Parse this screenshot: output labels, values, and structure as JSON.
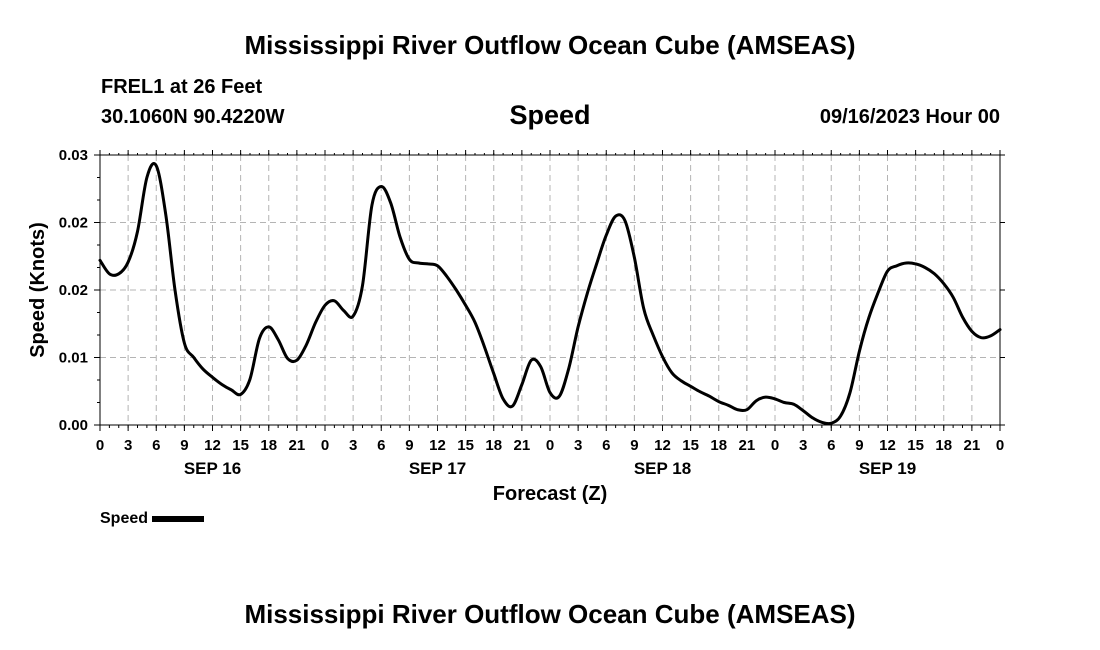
{
  "header": {
    "title": "Mississippi River Outflow Ocean Cube (AMSEAS)",
    "station": "FREL1 at 26 Feet",
    "coords": "30.1060N  90.4220W",
    "chart_name": "Speed",
    "datetime": "09/16/2023 Hour 00"
  },
  "footer": {
    "title": "Mississippi River Outflow Ocean Cube (AMSEAS)"
  },
  "chart_data": {
    "type": "line",
    "title": "Speed",
    "xlabel": "Forecast (Z)",
    "ylabel": "Speed (Knots)",
    "ylim": [
      0,
      0.03
    ],
    "xlim": [
      0,
      96
    ],
    "y_ticks": [
      "0.00",
      "0.01",
      "0.02",
      "0.02",
      "0.03"
    ],
    "x_tick_labels": [
      "0",
      "3",
      "6",
      "9",
      "12",
      "15",
      "18",
      "21",
      "0",
      "3",
      "6",
      "9",
      "12",
      "15",
      "18",
      "21",
      "0",
      "3",
      "6",
      "9",
      "12",
      "15",
      "18",
      "21",
      "0",
      "3",
      "6",
      "9",
      "12",
      "15",
      "18",
      "21",
      "0"
    ],
    "day_labels": [
      {
        "label": "SEP 16",
        "x": 12
      },
      {
        "label": "SEP 17",
        "x": 36
      },
      {
        "label": "SEP 18",
        "x": 60
      },
      {
        "label": "SEP 19",
        "x": 84
      }
    ],
    "grid": true,
    "legend_position": "bottom-left",
    "series": [
      {
        "name": "Speed",
        "color": "#000000",
        "points": [
          [
            0,
            0.0183
          ],
          [
            1,
            0.0168
          ],
          [
            2,
            0.0168
          ],
          [
            3,
            0.0181
          ],
          [
            4,
            0.0215
          ],
          [
            5,
            0.0275
          ],
          [
            6,
            0.0288
          ],
          [
            7,
            0.0235
          ],
          [
            8,
            0.015
          ],
          [
            9,
            0.0091
          ],
          [
            10,
            0.0075
          ],
          [
            11,
            0.0062
          ],
          [
            12,
            0.0053
          ],
          [
            13,
            0.0045
          ],
          [
            14,
            0.0039
          ],
          [
            15,
            0.0034
          ],
          [
            16,
            0.0051
          ],
          [
            17,
            0.0096
          ],
          [
            18,
            0.0109
          ],
          [
            19,
            0.0095
          ],
          [
            20,
            0.0074
          ],
          [
            21,
            0.0072
          ],
          [
            22,
            0.0089
          ],
          [
            23,
            0.0114
          ],
          [
            24,
            0.0133
          ],
          [
            25,
            0.0138
          ],
          [
            26,
            0.0127
          ],
          [
            27,
            0.0121
          ],
          [
            28,
            0.0155
          ],
          [
            29,
            0.0244
          ],
          [
            30,
            0.0265
          ],
          [
            31,
            0.0247
          ],
          [
            32,
            0.0209
          ],
          [
            33,
            0.0184
          ],
          [
            34,
            0.018
          ],
          [
            35,
            0.0179
          ],
          [
            36,
            0.0177
          ],
          [
            37,
            0.0165
          ],
          [
            38,
            0.015
          ],
          [
            39,
            0.0133
          ],
          [
            40,
            0.0114
          ],
          [
            41,
            0.0087
          ],
          [
            42,
            0.0057
          ],
          [
            43,
            0.0029
          ],
          [
            44,
            0.0021
          ],
          [
            45,
            0.0045
          ],
          [
            46,
            0.0072
          ],
          [
            47,
            0.0065
          ],
          [
            48,
            0.0036
          ],
          [
            49,
            0.0032
          ],
          [
            50,
            0.0063
          ],
          [
            51,
            0.0109
          ],
          [
            52,
            0.0147
          ],
          [
            53,
            0.018
          ],
          [
            54,
            0.0211
          ],
          [
            55,
            0.0232
          ],
          [
            56,
            0.0227
          ],
          [
            57,
            0.0186
          ],
          [
            58,
            0.0129
          ],
          [
            59,
            0.01
          ],
          [
            60,
            0.0076
          ],
          [
            61,
            0.0058
          ],
          [
            62,
            0.0049
          ],
          [
            63,
            0.0043
          ],
          [
            64,
            0.0037
          ],
          [
            65,
            0.0032
          ],
          [
            66,
            0.0026
          ],
          [
            67,
            0.0022
          ],
          [
            68,
            0.0017
          ],
          [
            69,
            0.0017
          ],
          [
            70,
            0.0027
          ],
          [
            71,
            0.0031
          ],
          [
            72,
            0.0029
          ],
          [
            73,
            0.0025
          ],
          [
            74,
            0.0023
          ],
          [
            75,
            0.0016
          ],
          [
            76,
            0.0008
          ],
          [
            77,
            0.0003
          ],
          [
            78,
            0.0002
          ],
          [
            79,
            0.001
          ],
          [
            80,
            0.0036
          ],
          [
            81,
            0.0082
          ],
          [
            82,
            0.0119
          ],
          [
            83,
            0.0147
          ],
          [
            84,
            0.0171
          ],
          [
            85,
            0.0177
          ],
          [
            86,
            0.018
          ],
          [
            87,
            0.0179
          ],
          [
            88,
            0.0175
          ],
          [
            89,
            0.0168
          ],
          [
            90,
            0.0157
          ],
          [
            91,
            0.0142
          ],
          [
            92,
            0.012
          ],
          [
            93,
            0.0104
          ],
          [
            94,
            0.0097
          ],
          [
            95,
            0.0099
          ],
          [
            96,
            0.0106
          ]
        ]
      }
    ]
  }
}
